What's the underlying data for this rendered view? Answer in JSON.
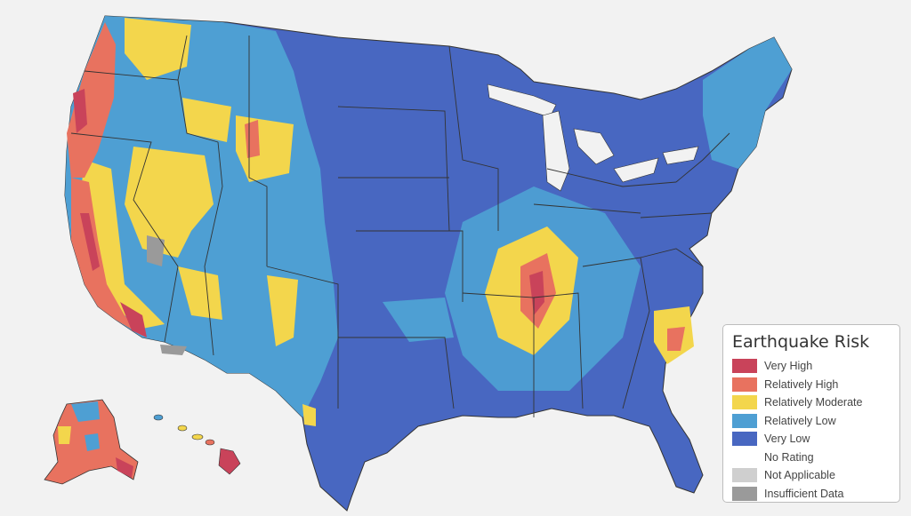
{
  "legend": {
    "title": "Earthquake Risk",
    "items": [
      {
        "label": "Very High",
        "color": "#c9435a"
      },
      {
        "label": "Relatively High",
        "color": "#e8725f"
      },
      {
        "label": "Relatively Moderate",
        "color": "#f3d64c"
      },
      {
        "label": "Relatively Low",
        "color": "#4e9fd3"
      },
      {
        "label": "Very Low",
        "color": "#4867c1"
      },
      {
        "label": "No Rating",
        "color": "#ffffff"
      },
      {
        "label": "Not Applicable",
        "color": "#cfcfcf"
      },
      {
        "label": "Insufficient Data",
        "color": "#9a9a9a"
      }
    ]
  }
}
